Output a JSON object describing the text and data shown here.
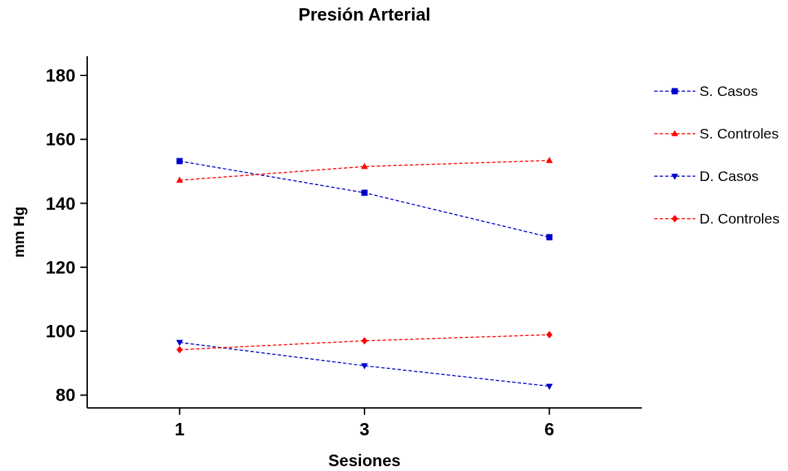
{
  "chart_data": {
    "type": "line",
    "title": "Presión Arterial",
    "xlabel": "Sesiones",
    "ylabel": "mm Hg",
    "categories": [
      "1",
      "3",
      "6"
    ],
    "ylim": [
      76,
      186
    ],
    "yticks": [
      80,
      100,
      120,
      140,
      160,
      180
    ],
    "grid": false,
    "legend": "right",
    "line_style": "dashed",
    "series": [
      {
        "name": "S. Casos",
        "color": "#0000cc",
        "marker": "square",
        "values": [
          153.2,
          143.3,
          129.4
        ]
      },
      {
        "name": "S. Controles",
        "color": "#ff0000",
        "marker": "triangle",
        "values": [
          147.2,
          151.5,
          153.4
        ]
      },
      {
        "name": "D. Casos",
        "color": "#0000cc",
        "marker": "triangle-down",
        "values": [
          96.5,
          89.2,
          82.8
        ]
      },
      {
        "name": "D. Controles",
        "color": "#ff0000",
        "marker": "diamond",
        "values": [
          94.2,
          97,
          98.9
        ]
      }
    ]
  }
}
